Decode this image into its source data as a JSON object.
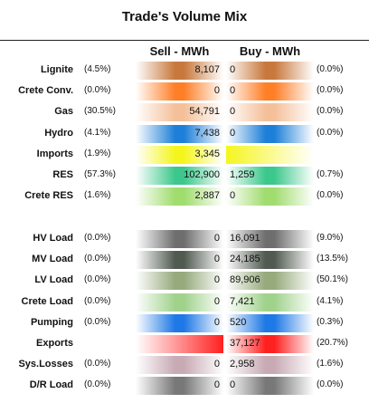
{
  "title": "Trade's Volume Mix",
  "headers": {
    "sell": "Sell - MWh",
    "buy": "Buy - MWh"
  },
  "chart_data": {
    "type": "table",
    "title": "Trade's Volume Mix",
    "columns": [
      "Sell - MWh",
      "Buy - MWh"
    ],
    "groups": [
      {
        "rows": [
          {
            "label": "Lignite",
            "sell_pct": "(4.5%)",
            "sell": "8,107",
            "sell_value": 8107,
            "buy": "0",
            "buy_value": 0,
            "buy_pct": "(0.0%)",
            "color": "#c8783c"
          },
          {
            "label": "Crete Conv.",
            "sell_pct": "(0.0%)",
            "sell": "0",
            "sell_value": 0,
            "buy": "0",
            "buy_value": 0,
            "buy_pct": "(0.0%)",
            "color": "#ff7f27"
          },
          {
            "label": "Gas",
            "sell_pct": "(30.5%)",
            "sell": "54,791",
            "sell_value": 54791,
            "buy": "0",
            "buy_value": 0,
            "buy_pct": "(0.0%)",
            "color": "#f4c09a"
          },
          {
            "label": "Hydro",
            "sell_pct": "(4.1%)",
            "sell": "7,438",
            "sell_value": 7438,
            "buy": "0",
            "buy_value": 0,
            "buy_pct": "(0.0%)",
            "color": "#1e7fd8"
          },
          {
            "label": "Imports",
            "sell_pct": "(1.9%)",
            "sell": "3,345",
            "sell_value": 3345,
            "buy": "",
            "buy_value": null,
            "buy_pct": "",
            "color": "#f5f51e"
          },
          {
            "label": "RES",
            "sell_pct": "(57.3%)",
            "sell": "102,900",
            "sell_value": 102900,
            "buy": "1,259",
            "buy_value": 1259,
            "buy_pct": "(0.7%)",
            "color": "#3cc88c"
          },
          {
            "label": "Crete RES",
            "sell_pct": "(1.6%)",
            "sell": "2,887",
            "sell_value": 2887,
            "buy": "0",
            "buy_value": 0,
            "buy_pct": "(0.0%)",
            "color": "#a0dc6e"
          }
        ]
      },
      {
        "rows": [
          {
            "label": "HV Load",
            "sell_pct": "(0.0%)",
            "sell": "0",
            "sell_value": 0,
            "buy": "16,091",
            "buy_value": 16091,
            "buy_pct": "(9.0%)",
            "color": "#6e6e6e"
          },
          {
            "label": "MV Load",
            "sell_pct": "(0.0%)",
            "sell": "0",
            "sell_value": 0,
            "buy": "24,185",
            "buy_value": 24185,
            "buy_pct": "(13.5%)",
            "color": "#505a50"
          },
          {
            "label": "LV Load",
            "sell_pct": "(0.0%)",
            "sell": "0",
            "sell_value": 0,
            "buy": "89,906",
            "buy_value": 89906,
            "buy_pct": "(50.1%)",
            "color": "#96aa7c"
          },
          {
            "label": "Crete Load",
            "sell_pct": "(0.0%)",
            "sell": "0",
            "sell_value": 0,
            "buy": "7,421",
            "buy_value": 7421,
            "buy_pct": "(4.1%)",
            "color": "#a0d28c"
          },
          {
            "label": "Pumping",
            "sell_pct": "(0.0%)",
            "sell": "0",
            "sell_value": 0,
            "buy": "520",
            "buy_value": 520,
            "buy_pct": "(0.3%)",
            "color": "#1e78e6"
          },
          {
            "label": "Exports",
            "sell_pct": "",
            "sell": "",
            "sell_value": null,
            "buy": "37,127",
            "buy_value": 37127,
            "buy_pct": "(20.7%)",
            "color": "#ff2020"
          },
          {
            "label": "Sys.Losses",
            "sell_pct": "(0.0%)",
            "sell": "0",
            "sell_value": 0,
            "buy": "2,958",
            "buy_value": 2958,
            "buy_pct": "(1.6%)",
            "color": "#c8aab4"
          },
          {
            "label": "D/R Load",
            "sell_pct": "(0.0%)",
            "sell": "0",
            "sell_value": 0,
            "buy": "0",
            "buy_value": 0,
            "buy_pct": "(0.0%)",
            "color": "#787878"
          }
        ]
      }
    ]
  }
}
